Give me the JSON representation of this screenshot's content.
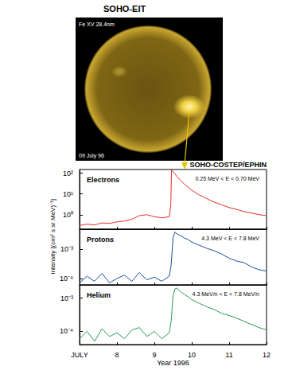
{
  "image": {
    "title": "SOHO-EIT",
    "label": "Fe XV 28.4nm",
    "date": "09 July 96"
  },
  "figure": {
    "title": "SOHO-COSTEP/EPHIN",
    "ylabel": "Intensity [(cm² s sr MeV)⁻¹]"
  },
  "chart_data": [
    {
      "type": "line",
      "title": "Electrons",
      "subtitle": "0.25 MeV < E < 0.70 MeV",
      "color": "#e0302a",
      "log": "y",
      "tick_labels": "y",
      "xlim": [
        7,
        12
      ],
      "xticks": [
        {
          "value": 7,
          "label": "JULY"
        },
        8,
        9,
        10,
        11,
        12
      ],
      "ylim": [
        0.2,
        150
      ],
      "yticks": [
        {
          "value": 1,
          "label": "10⁰"
        },
        {
          "value": 10,
          "label": "10¹"
        },
        {
          "value": 100,
          "label": "10²"
        }
      ],
      "x": [
        7.0,
        7.2,
        7.4,
        7.6,
        7.8,
        8.0,
        8.2,
        8.4,
        8.6,
        8.8,
        9.0,
        9.2,
        9.4,
        9.44,
        9.46,
        9.5,
        9.6,
        9.7,
        9.8,
        10.0,
        10.2,
        10.4,
        10.6,
        10.8,
        11.0,
        11.2,
        11.4,
        11.6,
        11.8,
        12.0
      ],
      "values": [
        0.3,
        0.35,
        0.32,
        0.4,
        0.38,
        0.45,
        0.5,
        0.6,
        0.9,
        1.0,
        0.8,
        0.7,
        0.8,
        3,
        150,
        120,
        70,
        45,
        30,
        15,
        9,
        6,
        4,
        3,
        2.2,
        1.8,
        1.4,
        1.2,
        1.0,
        0.9
      ]
    },
    {
      "type": "line",
      "title": "Protons",
      "subtitle": "4.3 MeV < E < 7.8 MeV",
      "color": "#1f4e9c",
      "log": "y",
      "tick_labels": "y",
      "xlim": [
        7,
        12
      ],
      "xticks": [
        {
          "value": 7,
          "label": "JULY"
        },
        8,
        9,
        10,
        11,
        12
      ],
      "ylim": [
        6e-05,
        0.005
      ],
      "yticks": [
        {
          "value": 0.0001,
          "label": "10⁻⁴"
        },
        {
          "value": 0.001,
          "label": "10⁻³"
        }
      ],
      "x": [
        7.0,
        7.2,
        7.4,
        7.6,
        7.8,
        8.0,
        8.2,
        8.4,
        8.6,
        8.8,
        9.0,
        9.2,
        9.4,
        9.45,
        9.5,
        9.55,
        9.6,
        9.7,
        9.8,
        9.9,
        10.0,
        10.2,
        10.4,
        10.6,
        10.8,
        11.0,
        11.2,
        11.4,
        11.6,
        11.8,
        12.0
      ],
      "values": [
        7e-05,
        0.00012,
        8e-05,
        0.00015,
        7e-05,
        0.0001,
        0.00013,
        8e-05,
        0.00016,
        9e-05,
        0.00011,
        8e-05,
        0.00012,
        0.0003,
        0.0025,
        0.004,
        0.0035,
        0.003,
        0.0025,
        0.0022,
        0.0018,
        0.0014,
        0.0011,
        0.0009,
        0.0007,
        0.0005,
        0.0004,
        0.00035,
        0.00025,
        0.0002,
        0.00018
      ]
    },
    {
      "type": "line",
      "title": "Helium",
      "subtitle": "4.3 MeV/n < E < 7.8 MeV/n",
      "color": "#2a9a55",
      "log": "y",
      "xlabel": "Year 1996",
      "xlim": [
        7,
        12
      ],
      "xticks": [
        {
          "value": 7,
          "label": "JULY"
        },
        8,
        9,
        10,
        11,
        12
      ],
      "ylim": [
        4e-05,
        0.0025
      ],
      "yticks": [
        {
          "value": 0.0001,
          "label": "10⁻⁴"
        },
        {
          "value": 0.001,
          "label": "10⁻³"
        }
      ],
      "x": [
        7.0,
        7.2,
        7.4,
        7.6,
        7.8,
        8.0,
        8.2,
        8.4,
        8.6,
        8.8,
        9.0,
        9.2,
        9.4,
        9.45,
        9.5,
        9.55,
        9.6,
        9.7,
        9.8,
        9.9,
        10.0,
        10.2,
        10.4,
        10.6,
        10.8,
        11.0,
        11.2,
        11.4,
        11.6,
        11.8,
        12.0
      ],
      "values": [
        6e-05,
        0.0001,
        5e-05,
        0.00012,
        7e-05,
        9e-05,
        6e-05,
        0.00011,
        0.00013,
        7e-05,
        0.0001,
        6e-05,
        9e-05,
        0.0002,
        0.0012,
        0.0019,
        0.002,
        0.0016,
        0.0013,
        0.0011,
        0.0009,
        0.0007,
        0.00055,
        0.00045,
        0.00035,
        0.0003,
        0.00025,
        0.0002,
        0.00016,
        0.00013,
        0.00011
      ]
    }
  ]
}
